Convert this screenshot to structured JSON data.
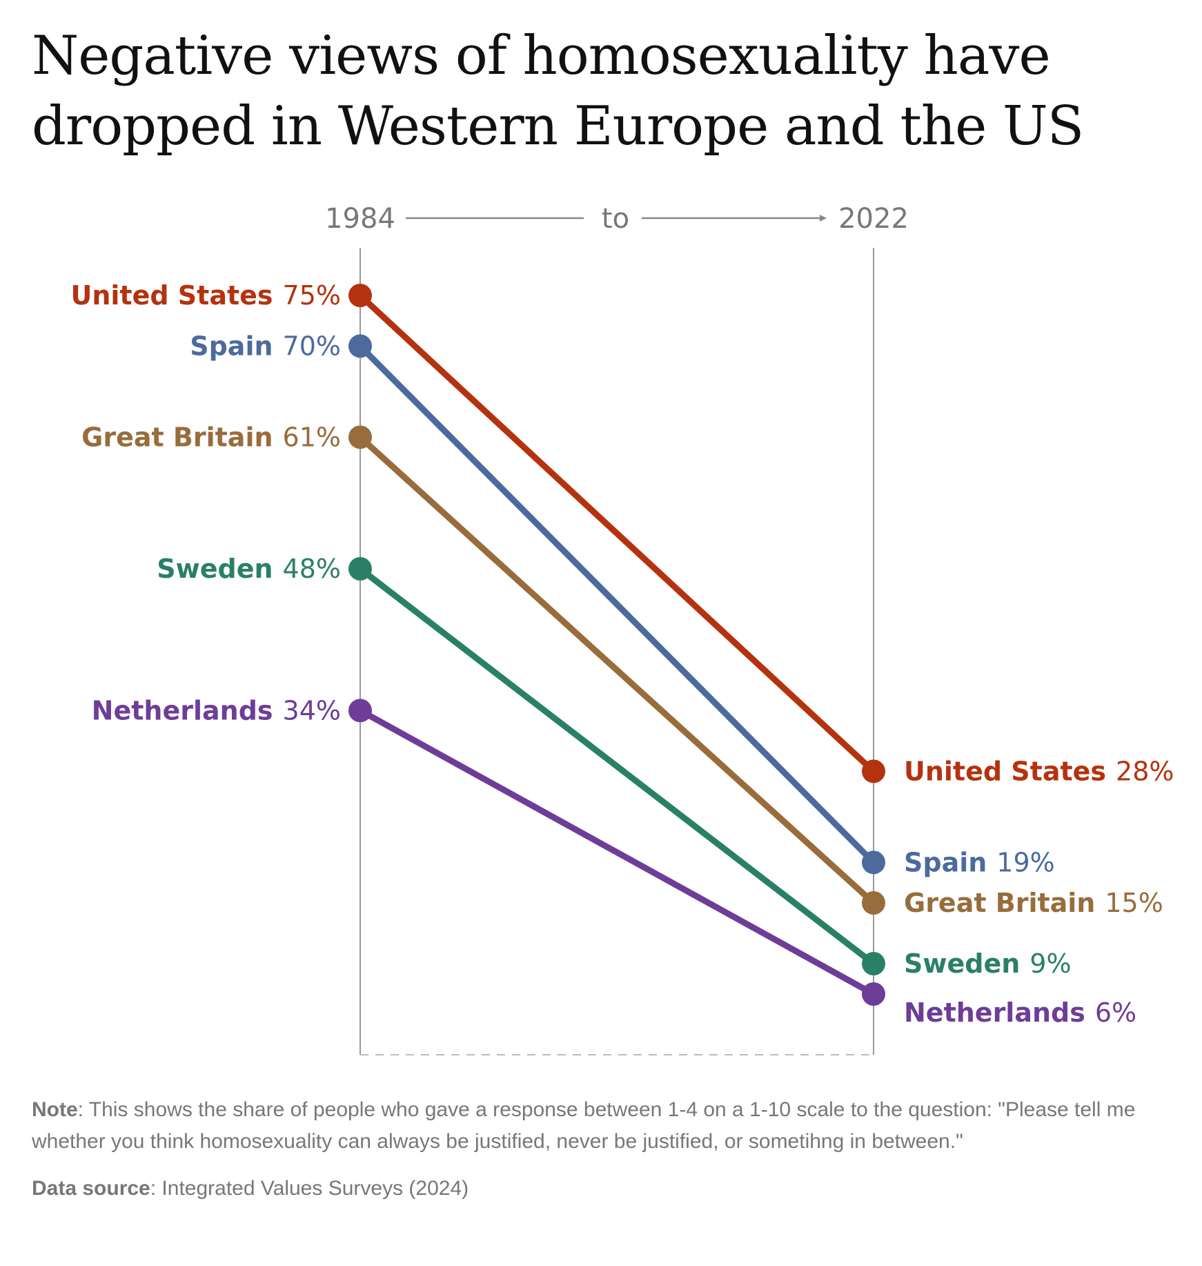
{
  "title_lines": [
    "Negative views of homosexuality have",
    "dropped in Western Europe and the US"
  ],
  "chart_data": {
    "type": "line",
    "x": [
      "1984",
      "2022"
    ],
    "connector_label": "to",
    "y_unit": "%",
    "ylim": [
      0,
      100
    ],
    "series": [
      {
        "name": "United States",
        "values": [
          75,
          28
        ],
        "color": "#b5320e"
      },
      {
        "name": "Spain",
        "values": [
          70,
          19
        ],
        "color": "#4c6a9c"
      },
      {
        "name": "Great Britain",
        "values": [
          61,
          15
        ],
        "color": "#986c3b"
      },
      {
        "name": "Sweden",
        "values": [
          48,
          9
        ],
        "color": "#2a8066"
      },
      {
        "name": "Netherlands",
        "values": [
          34,
          6
        ],
        "color": "#6e3d98"
      }
    ],
    "value_labels": {
      "left": [
        "75%",
        "70%",
        "61%",
        "48%",
        "34%"
      ],
      "right": [
        "28%",
        "19%",
        "15%",
        "9%",
        "6%"
      ]
    }
  },
  "footer": {
    "note_label": "Note",
    "note_text": ": This shows the share of people who gave a response between 1-4 on a 1-10 scale to the question: \"Please tell me whether you think homosexuality can always be justified, never be justified, or sometihng in between.\"",
    "source_label": "Data source",
    "source_text": ": Integrated Values Surveys (2024)"
  }
}
